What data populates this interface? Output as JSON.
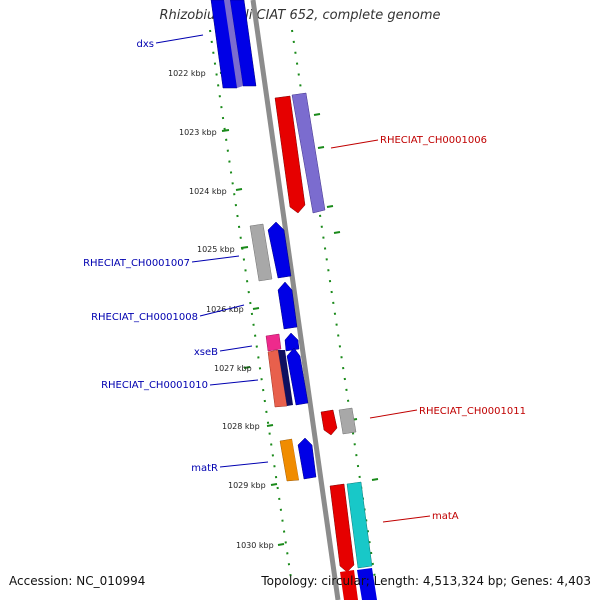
{
  "title": "Rhizobium etli CIAT 652, complete genome",
  "accession": "Accession: NC_010994",
  "summary": "Topology: circular; Length: 4,513,324 bp; Genes: 4,403",
  "ticks": [
    "1022 kbp",
    "1023 kbp",
    "1024 kbp",
    "1025 kbp",
    "1026 kbp",
    "1027 kbp",
    "1028 kbp",
    "1029 kbp",
    "1030 kbp"
  ],
  "labels": {
    "left": [
      "dxs",
      "RHECIAT_CH0001007",
      "RHECIAT_CH0001008",
      "xseB",
      "RHECIAT_CH0001010",
      "matR"
    ],
    "right": [
      "RHECIAT_CH0001006",
      "RHECIAT_CH0001011",
      "matA"
    ]
  },
  "colors": {
    "blue": "#0000e6",
    "red": "#e60000",
    "purple": "#7b6ccf",
    "gray": "#a8a8a8",
    "magenta": "#ee2a8c",
    "salmon": "#e8604c",
    "navy": "#101060",
    "orange": "#f08c00",
    "cyan": "#18c8c8",
    "label_blue": "#0000b0",
    "label_red": "#c00000",
    "tick_green": "#1a8a1a",
    "backbone": "#8c8c8c"
  }
}
